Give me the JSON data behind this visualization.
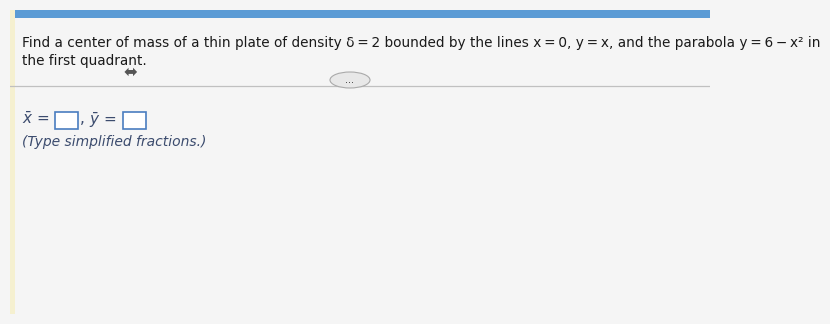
{
  "bg_top_color": "#5b9bd5",
  "bg_main_color": "#f5f5f5",
  "bg_answer_color": "#f0f0f0",
  "title_text1": "Find a center of mass of a thin plate of density δ = 2 bounded by the lines x = 0, y = x, and the parabola y = 6 − x² in",
  "title_text2": "the first quadrant.",
  "note_text": "(Type simplified fractions.)",
  "answer_text_color": "#3c4c6e",
  "title_text_color": "#1a1a1a",
  "note_text_color": "#3c4c6e",
  "separator_color": "#c0c0c0",
  "box_border_color": "#4a7dc0",
  "title_fontsize": 9.8,
  "answer_fontsize": 11,
  "note_fontsize": 10
}
